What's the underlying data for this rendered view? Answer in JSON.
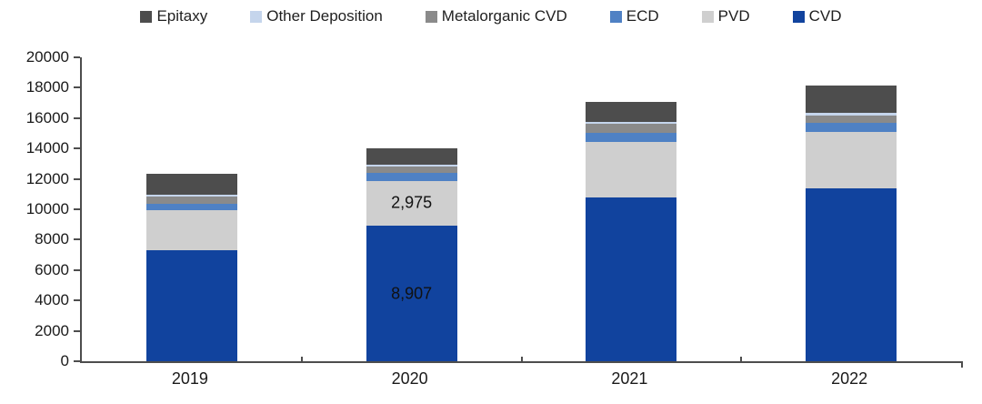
{
  "legend": {
    "items": [
      {
        "label": "Epitaxy",
        "color": "#4d4d4d"
      },
      {
        "label": "Other Deposition",
        "color": "#c5d5ec"
      },
      {
        "label": "Metalorganic CVD",
        "color": "#8a8a8a"
      },
      {
        "label": "ECD",
        "color": "#4f81c4"
      },
      {
        "label": "PVD",
        "color": "#cfcfcf"
      },
      {
        "label": "CVD",
        "color": "#11439e"
      }
    ]
  },
  "chart_data": {
    "type": "bar",
    "stacked": true,
    "title": "",
    "xlabel": "",
    "ylabel": "",
    "categories": [
      "2019",
      "2020",
      "2021",
      "2022"
    ],
    "series": [
      {
        "name": "CVD",
        "color": "#11439e",
        "values": [
          7300,
          8907,
          10750,
          11400
        ],
        "labels": [
          "",
          "8,907",
          "",
          ""
        ]
      },
      {
        "name": "PVD",
        "color": "#cfcfcf",
        "values": [
          2620,
          2975,
          3700,
          3700
        ],
        "labels": [
          "",
          "2,975",
          "",
          ""
        ]
      },
      {
        "name": "ECD",
        "color": "#4f81c4",
        "values": [
          450,
          500,
          600,
          620
        ],
        "labels": [
          "",
          "",
          "",
          ""
        ]
      },
      {
        "name": "Metalorganic CVD",
        "color": "#8a8a8a",
        "values": [
          480,
          460,
          600,
          450
        ],
        "labels": [
          "",
          "",
          "",
          ""
        ]
      },
      {
        "name": "Other Deposition",
        "color": "#c5d5ec",
        "values": [
          120,
          120,
          120,
          160
        ],
        "labels": [
          "",
          "",
          "",
          ""
        ]
      },
      {
        "name": "Epitaxy",
        "color": "#4d4d4d",
        "values": [
          1350,
          1060,
          1300,
          1800
        ],
        "labels": [
          "",
          "",
          "",
          ""
        ]
      }
    ],
    "ylim": [
      0,
      20000
    ],
    "ytick_step": 2000,
    "y_tick_labels": [
      "0",
      "2000",
      "4000",
      "6000",
      "8000",
      "10000",
      "12000",
      "14000",
      "16000",
      "18000",
      "20000"
    ],
    "legend_position": "top",
    "grid": "off",
    "axis_color": "#4d4d4d"
  }
}
